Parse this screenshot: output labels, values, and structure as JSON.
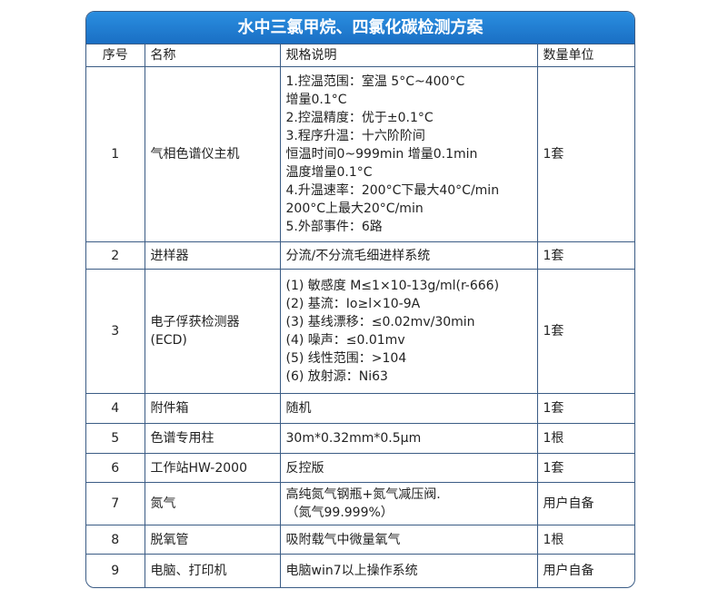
{
  "title": "水中三氯甲烷、四氯化碳检测方案",
  "headers": [
    "序号",
    "名称",
    "规格说明",
    "数量单位"
  ],
  "rows": [
    {
      "no": "1",
      "name": "气相色谱仪主机",
      "spec": [
        "1.控温范围：室温 5°C~400°C",
        "增量0.1°C",
        "2.控温精度：优于±0.1°C",
        "3.程序升温：十六阶阶间",
        "恒温时间0~999min 增量0.1min",
        "温度增量0.1°C",
        "4.升温速率：200°C下最大40°C/min",
        "200°C上最大20°C/min",
        "5.外部事件：6路"
      ],
      "qty": "1套"
    },
    {
      "no": "2",
      "name": "进样器",
      "spec": [
        "分流/不分流毛细进样系统"
      ],
      "qty": "1套"
    },
    {
      "no": "3",
      "name": "电子俘获检测器\n(ECD)",
      "spec": [
        "(1) 敏感度 M≤1×10-13g/ml(r-666)",
        "(2) 基流：Io≥l×10-9A",
        "(3) 基线漂移：≤0.02mv/30min",
        "(4) 噪声：≤0.01mv",
        "(5) 线性范围：>104",
        "(6) 放射源：Ni63"
      ],
      "qty": "1套"
    },
    {
      "no": "4",
      "name": "附件箱",
      "spec": [
        "随机"
      ],
      "qty": "1套"
    },
    {
      "no": "5",
      "name": "色谱专用柱",
      "spec": [
        "30m*0.32mm*0.5μm"
      ],
      "qty": "1根"
    },
    {
      "no": "6",
      "name": "工作站HW-2000",
      "spec": [
        "反控版"
      ],
      "qty": "1套"
    },
    {
      "no": "7",
      "name": "氮气",
      "spec": [
        "高纯氮气钢瓶+氮气减压阀.",
        "（氮气99.999%）"
      ],
      "qty": "用户自备"
    },
    {
      "no": "8",
      "name": "脱氧管",
      "spec": [
        "吸附载气中微量氧气"
      ],
      "qty": "1根"
    },
    {
      "no": "9",
      "name": "电脑、打印机",
      "spec": [
        "电脑win7以上操作系统"
      ],
      "qty": "用户自备"
    }
  ]
}
